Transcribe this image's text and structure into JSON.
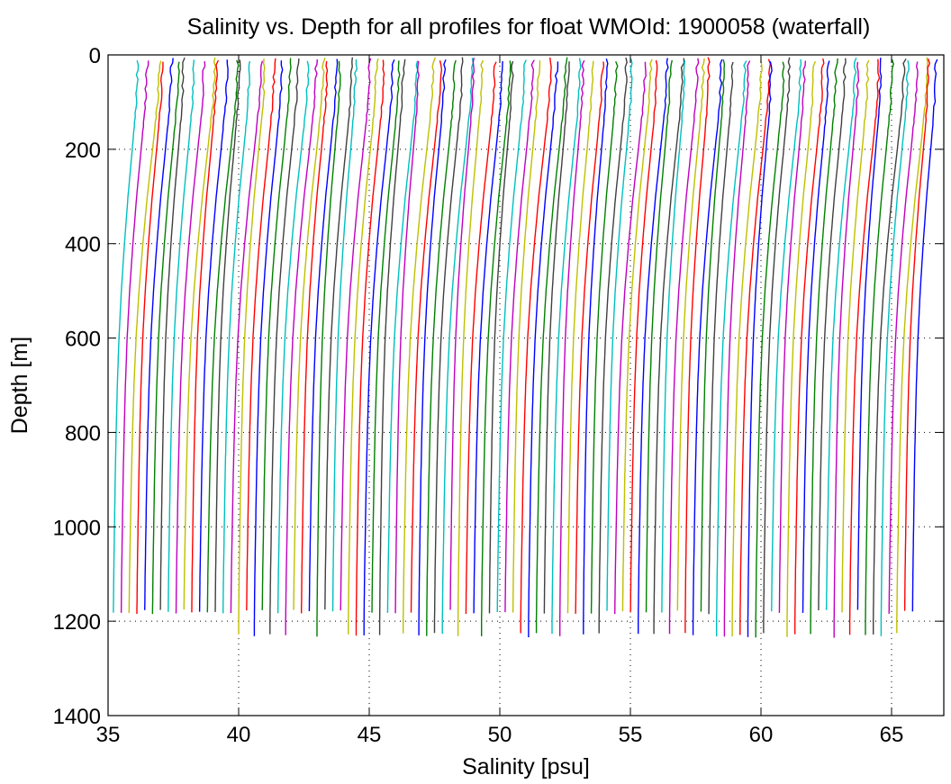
{
  "chart_data": {
    "type": "line",
    "title": "Salinity vs. Depth for all profiles for float WMOId: 1900058 (waterfall)",
    "xlabel": "Salinity [psu]",
    "ylabel": "Depth [m]",
    "xlim": [
      35,
      67
    ],
    "ylim": [
      0,
      1400
    ],
    "y_reversed": true,
    "grid": "dotted",
    "x_ticks": [
      35,
      40,
      45,
      50,
      55,
      60,
      65
    ],
    "x_tick_labels": [
      "35",
      "40",
      "45",
      "50",
      "55",
      "60",
      "65"
    ],
    "y_ticks": [
      0,
      200,
      400,
      600,
      800,
      1000,
      1200,
      1400
    ],
    "y_tick_labels": [
      "0",
      "200",
      "400",
      "600",
      "800",
      "1000",
      "1200",
      "1400"
    ],
    "color_cycle": [
      "#00bfbf",
      "#bf00bf",
      "#bfbf00",
      "#ff0000",
      "#0000ff",
      "#008000",
      "#404040"
    ],
    "waterfall": {
      "profile_count": 103,
      "offset_per_profile_psu": 0.3,
      "start_bottom_salinity": 35.25,
      "deep_salinity_psu": 34.95,
      "typical_max_depth_m": 1185,
      "long_profile_max_depth_m": 1235,
      "profile_shape": [
        [
          0,
          1.05
        ],
        [
          100,
          0.97
        ],
        [
          200,
          0.8
        ],
        [
          300,
          0.62
        ],
        [
          400,
          0.47
        ],
        [
          500,
          0.34
        ],
        [
          600,
          0.24
        ],
        [
          700,
          0.17
        ],
        [
          800,
          0.12
        ],
        [
          900,
          0.08
        ],
        [
          1000,
          0.05
        ],
        [
          1100,
          0.02
        ],
        [
          1200,
          0.0
        ]
      ],
      "note_shape_units": "salinity anomaly (psu) relative to each profile's deep value"
    }
  }
}
